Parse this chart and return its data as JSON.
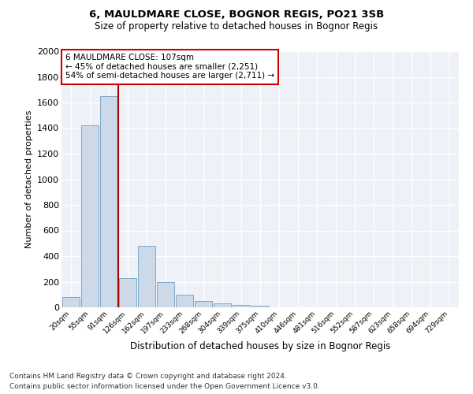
{
  "title_line1": "6, MAULDMARE CLOSE, BOGNOR REGIS, PO21 3SB",
  "title_line2": "Size of property relative to detached houses in Bognor Regis",
  "xlabel": "Distribution of detached houses by size in Bognor Regis",
  "ylabel": "Number of detached properties",
  "categories": [
    "20sqm",
    "55sqm",
    "91sqm",
    "126sqm",
    "162sqm",
    "197sqm",
    "233sqm",
    "268sqm",
    "304sqm",
    "339sqm",
    "375sqm",
    "410sqm",
    "446sqm",
    "481sqm",
    "516sqm",
    "552sqm",
    "587sqm",
    "623sqm",
    "658sqm",
    "694sqm",
    "729sqm"
  ],
  "values": [
    80,
    1420,
    1650,
    230,
    480,
    200,
    100,
    50,
    30,
    20,
    10,
    0,
    0,
    0,
    0,
    0,
    0,
    0,
    0,
    0,
    0
  ],
  "bar_color": "#ccd9e8",
  "bar_edge_color": "#7fa8c9",
  "vline_color": "#aa0000",
  "vline_pos": 2.5,
  "annotation_text": "6 MAULDMARE CLOSE: 107sqm\n← 45% of detached houses are smaller (2,251)\n54% of semi-detached houses are larger (2,711) →",
  "annotation_box_color": "#ffffff",
  "annotation_box_edge": "#cc0000",
  "ylim": [
    0,
    2000
  ],
  "yticks": [
    0,
    200,
    400,
    600,
    800,
    1000,
    1200,
    1400,
    1600,
    1800,
    2000
  ],
  "footer1": "Contains HM Land Registry data © Crown copyright and database right 2024.",
  "footer2": "Contains public sector information licensed under the Open Government Licence v3.0.",
  "plot_bg": "#eef2f8"
}
